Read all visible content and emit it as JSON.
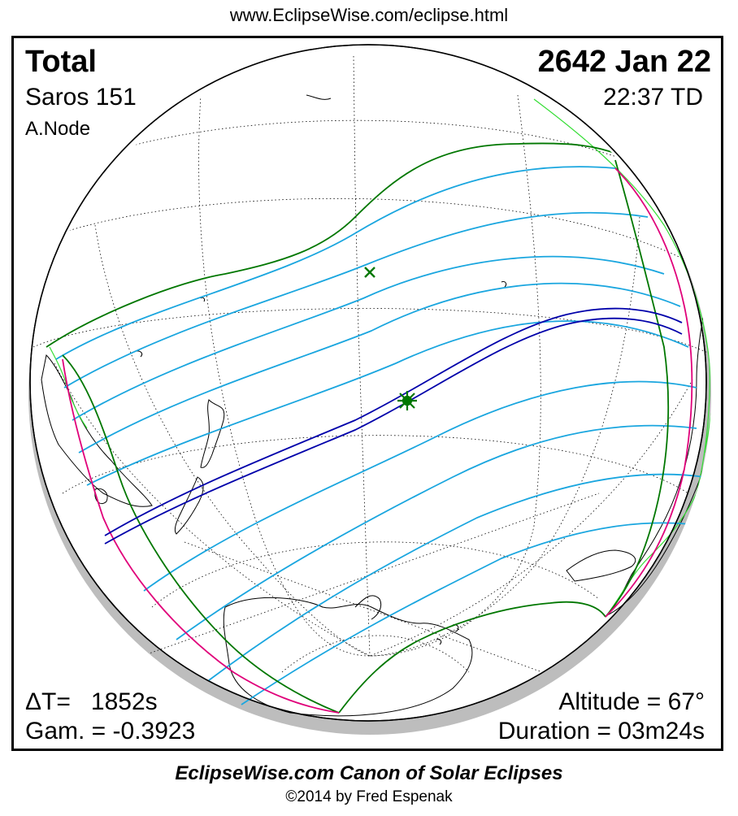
{
  "header": {
    "url": "www.EclipseWise.com/eclipse.html"
  },
  "eclipse": {
    "type": "Total",
    "date": "2642 Jan 22",
    "saros": "Saros 151",
    "time": "22:37 TD",
    "node": "A.Node",
    "delta_t": "ΔT=   1852s",
    "gamma": "Gam. = -0.3923",
    "altitude": "Altitude = 67°",
    "duration": "Duration = 03m24s"
  },
  "colors": {
    "central_path": "#0000aa",
    "partial_limits": "#007700",
    "rise_set_curves": "#e0007a",
    "isochrones": "#1aa6df",
    "coastlines_alt": "#33dd33",
    "globe_shadow": "#bdbdbd"
  },
  "markers": {
    "greatest_eclipse": "star",
    "subsolar_point": "cross"
  },
  "footer": {
    "title": "EclipseWise.com Canon of Solar Eclipses",
    "copyright": "©2014 by Fred Espenak"
  }
}
